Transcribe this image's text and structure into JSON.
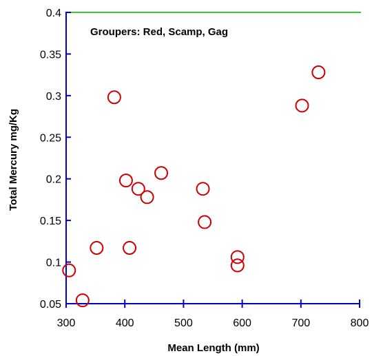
{
  "chart_data": {
    "type": "scatter",
    "title": "",
    "annotation": "Groupers: Red, Scamp, Gag",
    "xlabel": "Mean Length (mm)",
    "ylabel": "Total Mercury mg/Kg",
    "xlim": [
      300,
      800
    ],
    "ylim": [
      0.05,
      0.4
    ],
    "xticks": [
      300,
      400,
      500,
      600,
      700,
      800
    ],
    "yticks": [
      0.05,
      0.1,
      0.15,
      0.2,
      0.25,
      0.3,
      0.35,
      0.4
    ],
    "ytick_labels": [
      "0.05",
      "0.1",
      "0.15",
      "0.2",
      "0.25",
      "0.3",
      "0.35",
      "0.4"
    ],
    "grid": false,
    "reference_line": {
      "y": 0.4,
      "color": "#33cc33"
    },
    "colors": {
      "axis": "#0000cc",
      "marker": "#cc0000"
    },
    "series": [
      {
        "marker": "open-circle",
        "points": [
          {
            "x": 305,
            "y": 0.09
          },
          {
            "x": 328,
            "y": 0.054
          },
          {
            "x": 352,
            "y": 0.117
          },
          {
            "x": 382,
            "y": 0.298
          },
          {
            "x": 402,
            "y": 0.198
          },
          {
            "x": 408,
            "y": 0.117
          },
          {
            "x": 423,
            "y": 0.188
          },
          {
            "x": 438,
            "y": 0.178
          },
          {
            "x": 462,
            "y": 0.207
          },
          {
            "x": 533,
            "y": 0.188
          },
          {
            "x": 536,
            "y": 0.148
          },
          {
            "x": 592,
            "y": 0.106
          },
          {
            "x": 592,
            "y": 0.096
          },
          {
            "x": 702,
            "y": 0.288
          },
          {
            "x": 730,
            "y": 0.328
          }
        ]
      }
    ]
  }
}
